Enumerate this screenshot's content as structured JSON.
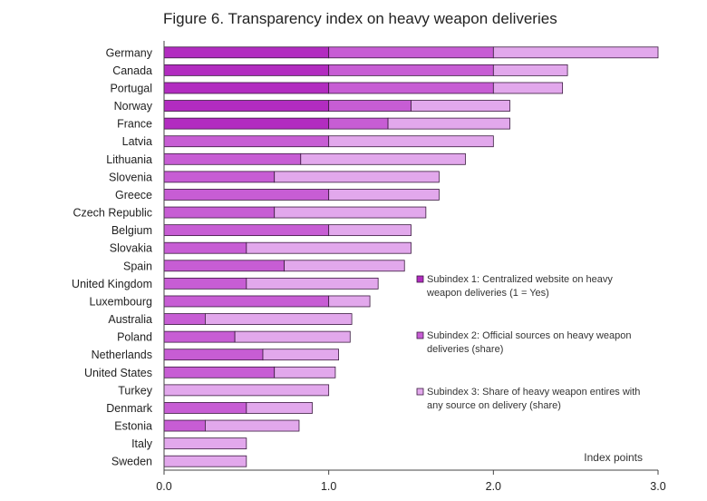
{
  "chart_data": {
    "type": "bar",
    "orientation": "horizontal",
    "stacked": true,
    "title": "Figure 6. Transparency index on heavy weapon deliveries",
    "xlabel": "",
    "ylabel": "",
    "xlim": [
      0,
      3
    ],
    "x_ticks": [
      "0.0",
      "1.0",
      "2.0",
      "3.0"
    ],
    "x_tick_values": [
      0,
      1,
      2,
      3
    ],
    "units_note": "Index points",
    "grid": false,
    "legend_position": "right",
    "categories": [
      "Germany",
      "Canada",
      "Portugal",
      "Norway",
      "France",
      "Latvia",
      "Lithuania",
      "Slovenia",
      "Greece",
      "Czech Republic",
      "Belgium",
      "Slovakia",
      "Spain",
      "United Kingdom",
      "Luxembourg",
      "Australia",
      "Poland",
      "Netherlands",
      "United States",
      "Turkey",
      "Denmark",
      "Estonia",
      "Italy",
      "Sweden"
    ],
    "series": [
      {
        "name": "Subindex 1: Centralized website on heavy weapon deliveries (1 = Yes)",
        "legend_lines": [
          "Subindex 1: Centralized website on heavy",
          "weapon deliveries (1 = Yes)"
        ],
        "color": "#b22cc0",
        "values": [
          1,
          1,
          1,
          1,
          1,
          0,
          0,
          0,
          0,
          0,
          0,
          0,
          0,
          0,
          0,
          0,
          0,
          0,
          0,
          0,
          0,
          0,
          0,
          0
        ]
      },
      {
        "name": "Subindex 2: Official sources on heavy weapon deliveries (share)",
        "legend_lines": [
          "Subindex 2: Official sources on heavy weapon",
          "deliveries (share)"
        ],
        "color": "#c75dd4",
        "values": [
          1,
          1,
          1,
          0.5,
          0.36,
          1,
          0.83,
          0.67,
          1,
          0.67,
          1,
          0.5,
          0.73,
          0.5,
          1,
          0.25,
          0.43,
          0.6,
          0.67,
          0,
          0.5,
          0.25,
          0,
          0
        ]
      },
      {
        "name": "Subindex 3: Share of heavy weapon entires with any source on delivery (share)",
        "legend_lines": [
          "Subindex 3: Share of heavy weapon entires with",
          "any source on delivery (share)"
        ],
        "color": "#e2a8ec",
        "values": [
          1,
          0.45,
          0.42,
          0.6,
          0.74,
          1,
          1,
          1,
          0.67,
          0.92,
          0.5,
          1,
          0.73,
          0.8,
          0.25,
          0.89,
          0.7,
          0.46,
          0.37,
          1,
          0.4,
          0.57,
          0.5,
          0.5
        ]
      }
    ]
  }
}
